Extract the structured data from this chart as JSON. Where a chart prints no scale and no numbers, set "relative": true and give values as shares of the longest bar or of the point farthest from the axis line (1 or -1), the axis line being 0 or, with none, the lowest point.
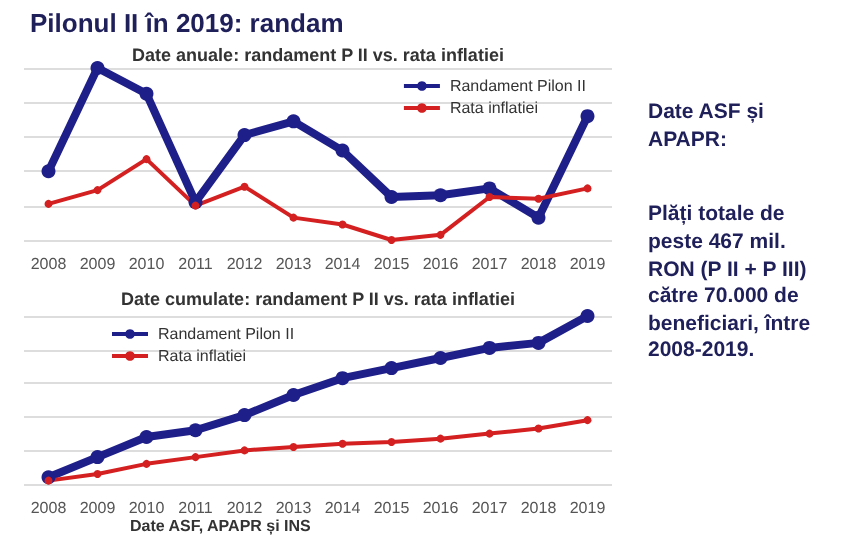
{
  "chart_data": [
    {
      "type": "line",
      "title": "Pilonul II în 2019: randam",
      "subtitle": "Date anuale: randament P II vs. rata inflatiei",
      "relative": true,
      "categories": [
        "2008",
        "2009",
        "2010",
        "2011",
        "2012",
        "2013",
        "2014",
        "2015",
        "2016",
        "2017",
        "2018",
        "2019"
      ],
      "series": [
        {
          "name": "Randament Pilon II",
          "color": "#1f1f8a",
          "values": [
            0.4,
            1.0,
            0.85,
            0.22,
            0.61,
            0.69,
            0.52,
            0.25,
            0.26,
            0.3,
            0.13,
            0.72
          ]
        },
        {
          "name": "Rata inflatiei",
          "color": "#d42020",
          "values": [
            0.21,
            0.29,
            0.47,
            0.2,
            0.31,
            0.13,
            0.09,
            0,
            0.03,
            0.25,
            0.24,
            0.3
          ]
        }
      ],
      "legend": "top right",
      "grid": "y",
      "marker": "circle",
      "line_style": "solid"
    },
    {
      "type": "line",
      "subtitle": "Date cumulate: randament P II vs. rata inflatiei",
      "relative": true,
      "categories": [
        "2008",
        "2009",
        "2010",
        "2011",
        "2012",
        "2013",
        "2014",
        "2015",
        "2016",
        "2017",
        "2018",
        "2019"
      ],
      "series": [
        {
          "name": "Randament Pilon II",
          "color": "#1f1f8a",
          "values": [
            0.04,
            0.16,
            0.28,
            0.32,
            0.41,
            0.53,
            0.63,
            0.69,
            0.75,
            0.81,
            0.84,
            1
          ]
        },
        {
          "name": "Rata inflatiei",
          "color": "#d42020",
          "values": [
            0.02,
            0.06,
            0.12,
            0.16,
            0.2,
            0.22,
            0.24,
            0.25,
            0.27,
            0.3,
            0.33,
            0.38
          ]
        }
      ],
      "legend": "top left",
      "grid": "y",
      "marker": "circle",
      "line_style": "solid",
      "annotations": [
        "Date ASF, APAPR și INS"
      ]
    },
    {
      "type": "other",
      "annotations": [
        "Date ASF și APAPR:",
        "Plăți totale de peste 467 mil. RON (P II + P III) către 70.000 de beneficiari, între 2008-2019."
      ]
    }
  ]
}
